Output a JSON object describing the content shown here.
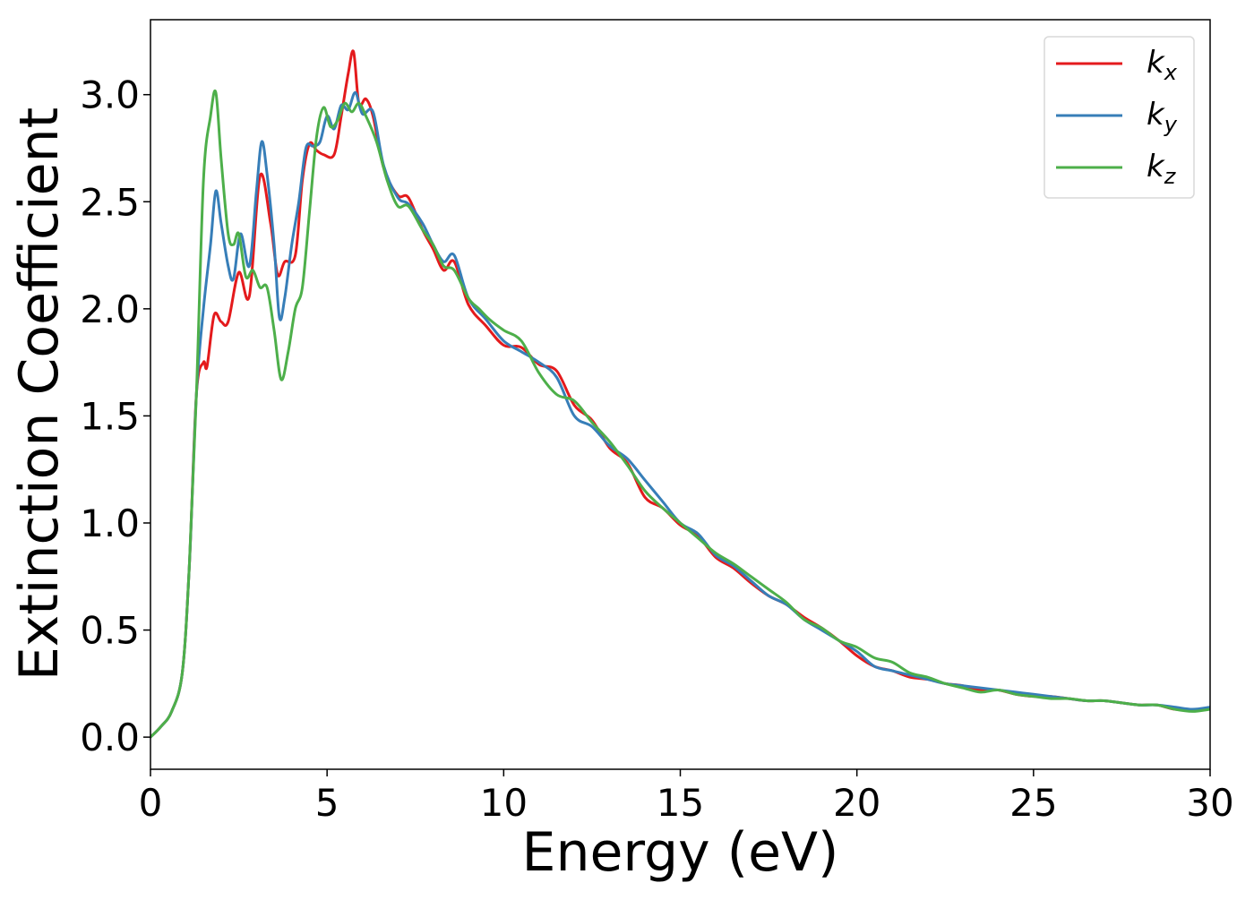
{
  "chart_data": {
    "type": "line",
    "xlabel": "Energy (eV)",
    "ylabel": "Extinction Coefficient",
    "xlim": [
      0,
      30
    ],
    "ylim": [
      -0.15,
      3.35
    ],
    "xticks": [
      0,
      5,
      10,
      15,
      20,
      25,
      30
    ],
    "xtick_labels": [
      "0",
      "5",
      "10",
      "15",
      "20",
      "25",
      "30"
    ],
    "yticks": [
      0.0,
      0.5,
      1.0,
      1.5,
      2.0,
      2.5,
      3.0
    ],
    "ytick_labels": [
      "0.0",
      "0.5",
      "1.0",
      "1.5",
      "2.0",
      "2.5",
      "3.0"
    ],
    "grid": false,
    "legend_position": "top-right",
    "series": [
      {
        "name": "k_x",
        "label_main": "k",
        "label_sub": "x",
        "color": "#e41a1c",
        "x": [
          0,
          0.3,
          0.6,
          0.9,
          1.1,
          1.3,
          1.5,
          1.6,
          1.8,
          2.0,
          2.2,
          2.5,
          2.8,
          3.1,
          3.4,
          3.6,
          3.8,
          4.1,
          4.3,
          4.5,
          4.7,
          4.9,
          5.2,
          5.4,
          5.6,
          5.75,
          5.9,
          6.1,
          6.3,
          6.6,
          7.0,
          7.3,
          7.7,
          8.0,
          8.3,
          8.6,
          9.0,
          9.5,
          10.0,
          10.5,
          11.0,
          11.5,
          12.0,
          12.5,
          13.0,
          13.5,
          14.0,
          14.5,
          15.0,
          15.5,
          16.0,
          16.5,
          17.0,
          17.5,
          18.0,
          18.5,
          19.0,
          19.5,
          20.0,
          20.5,
          21.0,
          21.5,
          22.0,
          22.5,
          23.0,
          23.5,
          24.0,
          24.5,
          25.0,
          25.5,
          26.0,
          26.5,
          27.0,
          27.5,
          28.0,
          28.5,
          29.0,
          29.5,
          30.0
        ],
        "y": [
          0.0,
          0.05,
          0.12,
          0.3,
          0.8,
          1.6,
          1.75,
          1.73,
          1.97,
          1.94,
          1.94,
          2.17,
          2.06,
          2.62,
          2.4,
          2.16,
          2.22,
          2.25,
          2.6,
          2.77,
          2.74,
          2.72,
          2.72,
          2.9,
          3.1,
          3.2,
          2.96,
          2.98,
          2.9,
          2.66,
          2.53,
          2.52,
          2.37,
          2.28,
          2.18,
          2.22,
          2.02,
          1.92,
          1.83,
          1.82,
          1.74,
          1.71,
          1.55,
          1.48,
          1.35,
          1.28,
          1.12,
          1.07,
          0.99,
          0.94,
          0.84,
          0.79,
          0.72,
          0.66,
          0.62,
          0.56,
          0.51,
          0.45,
          0.38,
          0.33,
          0.31,
          0.28,
          0.27,
          0.25,
          0.24,
          0.22,
          0.22,
          0.2,
          0.19,
          0.19,
          0.18,
          0.17,
          0.17,
          0.16,
          0.15,
          0.15,
          0.13,
          0.13,
          0.13
        ]
      },
      {
        "name": "k_y",
        "label_main": "k",
        "label_sub": "y",
        "color": "#377eb8",
        "x": [
          0,
          0.3,
          0.6,
          0.9,
          1.1,
          1.3,
          1.5,
          1.7,
          1.85,
          2.0,
          2.2,
          2.35,
          2.55,
          2.8,
          3.0,
          3.15,
          3.3,
          3.5,
          3.65,
          3.8,
          4.0,
          4.2,
          4.4,
          4.6,
          4.8,
          5.0,
          5.2,
          5.4,
          5.6,
          5.8,
          6.0,
          6.3,
          6.6,
          7.0,
          7.3,
          7.7,
          8.0,
          8.3,
          8.6,
          9.0,
          9.5,
          10.0,
          10.5,
          11.0,
          11.5,
          12.0,
          12.5,
          13.0,
          13.5,
          14.0,
          14.5,
          15.0,
          15.5,
          16.0,
          16.5,
          17.0,
          17.5,
          18.0,
          18.5,
          19.0,
          19.5,
          20.0,
          20.5,
          21.0,
          21.5,
          22.0,
          22.5,
          23.0,
          23.5,
          24.0,
          24.5,
          25.0,
          25.5,
          26.0,
          26.5,
          27.0,
          27.5,
          28.0,
          28.5,
          29.0,
          29.5,
          30.0
        ],
        "y": [
          0.0,
          0.05,
          0.12,
          0.3,
          0.8,
          1.6,
          2.0,
          2.3,
          2.55,
          2.4,
          2.2,
          2.14,
          2.35,
          2.2,
          2.55,
          2.78,
          2.63,
          2.3,
          1.96,
          2.05,
          2.3,
          2.5,
          2.75,
          2.76,
          2.78,
          2.9,
          2.84,
          2.95,
          2.93,
          3.01,
          2.91,
          2.92,
          2.67,
          2.52,
          2.49,
          2.4,
          2.3,
          2.22,
          2.25,
          2.05,
          1.95,
          1.85,
          1.8,
          1.75,
          1.68,
          1.5,
          1.45,
          1.36,
          1.3,
          1.2,
          1.1,
          1.0,
          0.95,
          0.85,
          0.8,
          0.73,
          0.66,
          0.62,
          0.55,
          0.5,
          0.45,
          0.4,
          0.33,
          0.31,
          0.29,
          0.27,
          0.25,
          0.24,
          0.23,
          0.22,
          0.21,
          0.2,
          0.19,
          0.18,
          0.17,
          0.17,
          0.16,
          0.15,
          0.15,
          0.14,
          0.13,
          0.14
        ]
      },
      {
        "name": "k_z",
        "label_main": "k",
        "label_sub": "z",
        "color": "#4daf4a",
        "x": [
          0,
          0.3,
          0.6,
          0.9,
          1.1,
          1.3,
          1.5,
          1.7,
          1.85,
          2.0,
          2.2,
          2.35,
          2.5,
          2.7,
          2.9,
          3.1,
          3.3,
          3.5,
          3.7,
          3.9,
          4.1,
          4.3,
          4.5,
          4.7,
          4.9,
          5.1,
          5.3,
          5.5,
          5.7,
          5.9,
          6.1,
          6.4,
          6.7,
          7.0,
          7.3,
          7.7,
          8.0,
          8.3,
          8.6,
          9.0,
          9.3,
          9.6,
          10.0,
          10.5,
          11.0,
          11.5,
          12.0,
          12.5,
          13.0,
          13.5,
          14.0,
          14.5,
          15.0,
          15.5,
          16.0,
          16.5,
          17.0,
          17.5,
          18.0,
          18.5,
          19.0,
          19.5,
          20.0,
          20.5,
          21.0,
          21.5,
          22.0,
          22.5,
          23.0,
          23.5,
          24.0,
          24.5,
          25.0,
          25.5,
          26.0,
          26.5,
          27.0,
          27.5,
          28.0,
          28.5,
          29.0,
          29.5,
          30.0
        ],
        "y": [
          0.0,
          0.05,
          0.12,
          0.3,
          0.8,
          1.6,
          2.6,
          2.9,
          3.01,
          2.7,
          2.35,
          2.3,
          2.35,
          2.15,
          2.18,
          2.1,
          2.1,
          1.9,
          1.67,
          1.8,
          2.0,
          2.1,
          2.45,
          2.8,
          2.94,
          2.85,
          2.88,
          2.96,
          2.92,
          2.96,
          2.9,
          2.78,
          2.6,
          2.48,
          2.48,
          2.37,
          2.3,
          2.2,
          2.18,
          2.05,
          2.0,
          1.95,
          1.9,
          1.85,
          1.7,
          1.6,
          1.57,
          1.47,
          1.38,
          1.27,
          1.15,
          1.07,
          1.0,
          0.93,
          0.86,
          0.81,
          0.75,
          0.69,
          0.63,
          0.55,
          0.51,
          0.45,
          0.42,
          0.37,
          0.35,
          0.3,
          0.28,
          0.25,
          0.23,
          0.21,
          0.22,
          0.2,
          0.19,
          0.18,
          0.18,
          0.17,
          0.17,
          0.16,
          0.15,
          0.15,
          0.13,
          0.12,
          0.13
        ]
      }
    ]
  }
}
